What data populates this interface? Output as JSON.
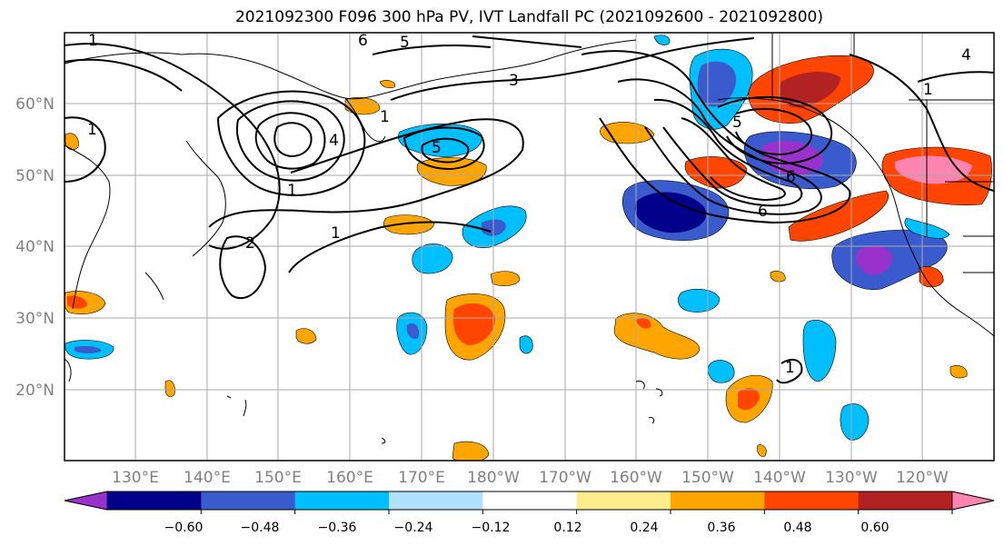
{
  "title": "2021092300 F096 300 hPa PV, IVT Landfall PC (2021092600 - 2021092800)",
  "map": {
    "lat_labels": [
      "60°N",
      "50°N",
      "40°N",
      "30°N",
      "20°N"
    ],
    "lon_labels": [
      "130°E",
      "140°E",
      "150°E",
      "160°E",
      "170°E",
      "180°W",
      "170°W",
      "160°W",
      "150°W",
      "140°W",
      "130°W",
      "120°W"
    ],
    "contour_labels": [
      "1",
      "1",
      "1",
      "1",
      "1",
      "1",
      "1",
      "2",
      "3",
      "4",
      "5",
      "5",
      "6",
      "6",
      "6",
      "5",
      "4"
    ]
  },
  "colorbar": {
    "ticks": [
      "−0.60",
      "−0.48",
      "−0.36",
      "−0.24",
      "−0.12",
      "0.12",
      "0.24",
      "0.36",
      "0.48",
      "0.60"
    ],
    "colors": [
      "#9932cc",
      "#00008b",
      "#3a5bcd",
      "#00bfff",
      "#b0e2ff",
      "#ffffff",
      "#ffec8b",
      "#ffa500",
      "#ff4500",
      "#b22222",
      "#ff85b0"
    ]
  },
  "colors": {
    "coast": "#000000",
    "grid": "#a9a9a9",
    "axis_label": "#808080",
    "contour": "#000000"
  }
}
